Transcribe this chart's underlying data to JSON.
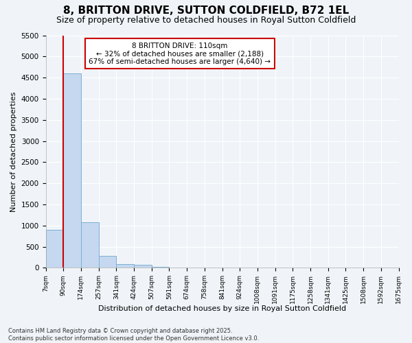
{
  "title": "8, BRITTON DRIVE, SUTTON COLDFIELD, B72 1EL",
  "subtitle": "Size of property relative to detached houses in Royal Sutton Coldfield",
  "xlabel": "Distribution of detached houses by size in Royal Sutton Coldfield",
  "ylabel": "Number of detached properties",
  "footnote1": "Contains HM Land Registry data © Crown copyright and database right 2025.",
  "footnote2": "Contains public sector information licensed under the Open Government Licence v3.0.",
  "annotation_line1": "8 BRITTON DRIVE: 110sqm",
  "annotation_line2": "← 32% of detached houses are smaller (2,188)",
  "annotation_line3": "67% of semi-detached houses are larger (4,640) →",
  "bin_labels": [
    "7sqm",
    "90sqm",
    "174sqm",
    "257sqm",
    "341sqm",
    "424sqm",
    "507sqm",
    "591sqm",
    "674sqm",
    "758sqm",
    "841sqm",
    "924sqm",
    "1008sqm",
    "1091sqm",
    "1175sqm",
    "1258sqm",
    "1341sqm",
    "1425sqm",
    "1508sqm",
    "1592sqm",
    "1675sqm"
  ],
  "bar_values": [
    900,
    4600,
    1080,
    290,
    95,
    70,
    30,
    0,
    0,
    0,
    0,
    0,
    0,
    0,
    0,
    0,
    0,
    0,
    0,
    0
  ],
  "bar_color": "#c5d8f0",
  "bar_edge_color": "#7bafd4",
  "property_line_x": 1.0,
  "ylim": [
    0,
    5500
  ],
  "yticks": [
    0,
    500,
    1000,
    1500,
    2000,
    2500,
    3000,
    3500,
    4000,
    4500,
    5000,
    5500
  ],
  "background_color": "#f0f4f8",
  "plot_bg_color": "#f0f4f8",
  "grid_color": "#ffffff",
  "title_fontsize": 11,
  "subtitle_fontsize": 9,
  "annotation_box_facecolor": "#ffffff",
  "annotation_box_edgecolor": "#cc0000",
  "red_line_color": "#cc0000",
  "footnote_fontsize": 6
}
